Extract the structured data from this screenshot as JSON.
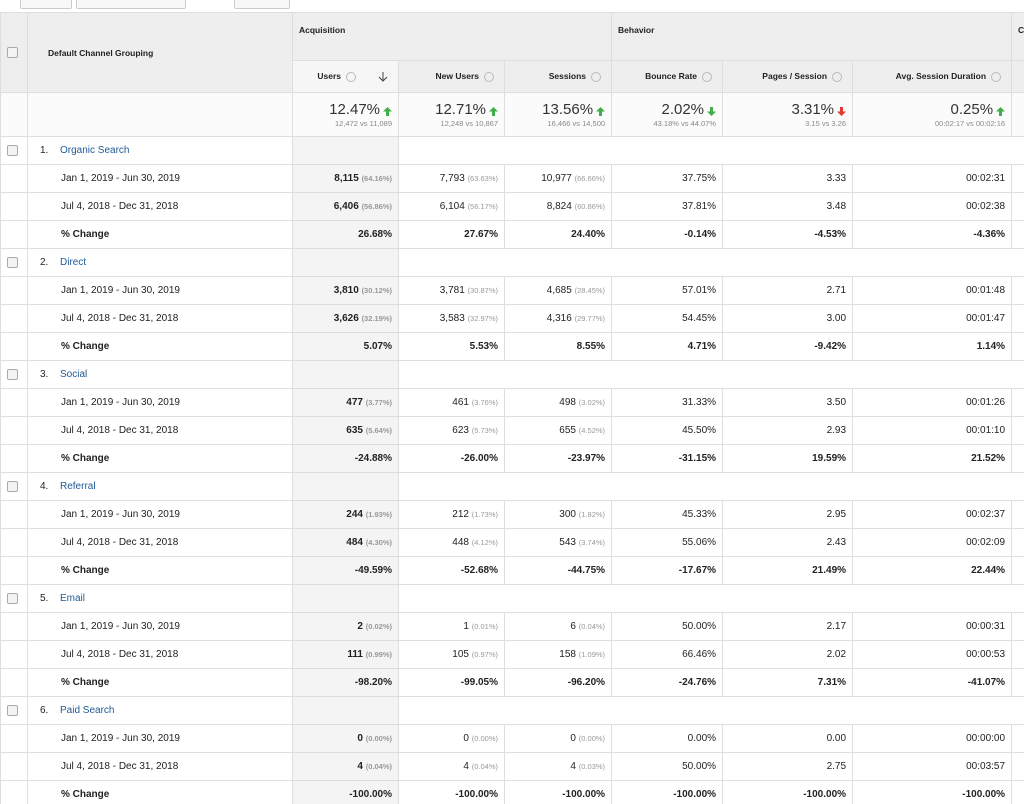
{
  "header": {
    "dimension": "Default Channel Grouping",
    "groups": [
      "Acquisition",
      "Behavior",
      "Co"
    ],
    "columns": [
      "Users",
      "New Users",
      "Sessions",
      "Bounce Rate",
      "Pages / Session",
      "Avg. Session Duration"
    ]
  },
  "summary": [
    {
      "change": "12.47%",
      "direction": "up",
      "arrow_color": "#3fae49",
      "detail": "12,472 vs 11,089"
    },
    {
      "change": "12.71%",
      "direction": "up",
      "arrow_color": "#3fae49",
      "detail": "12,248 vs 10,867"
    },
    {
      "change": "13.56%",
      "direction": "up",
      "arrow_color": "#3fae49",
      "detail": "16,466 vs 14,500"
    },
    {
      "change": "2.02%",
      "direction": "down",
      "arrow_color": "#3fae49",
      "detail": "43.18% vs 44.07%"
    },
    {
      "change": "3.31%",
      "direction": "down",
      "arrow_color": "#e53935",
      "detail": "3.15 vs 3.26"
    },
    {
      "change": "0.25%",
      "direction": "up",
      "arrow_color": "#3fae49",
      "detail": "00:02:17 vs 00:02:16"
    }
  ],
  "rows": [
    {
      "index": "1.",
      "name": "Organic Search",
      "periods": [
        {
          "label": "Jan 1, 2019 - Jun 30, 2019",
          "cells": [
            {
              "value": "8,115",
              "share": "(64.16%)"
            },
            {
              "value": "7,793",
              "share": "(63.63%)"
            },
            {
              "value": "10,977",
              "share": "(66.66%)"
            },
            "37.75%",
            "3.33",
            "00:02:31"
          ]
        },
        {
          "label": "Jul 4, 2018 - Dec 31, 2018",
          "cells": [
            {
              "value": "6,406",
              "share": "(56.86%)"
            },
            {
              "value": "6,104",
              "share": "(56.17%)"
            },
            {
              "value": "8,824",
              "share": "(60.86%)"
            },
            "37.81%",
            "3.48",
            "00:02:38"
          ]
        }
      ],
      "change": {
        "label": "% Change",
        "cells": [
          "26.68%",
          "27.67%",
          "24.40%",
          "-0.14%",
          "-4.53%",
          "-4.36%"
        ]
      }
    },
    {
      "index": "2.",
      "name": "Direct",
      "periods": [
        {
          "label": "Jan 1, 2019 - Jun 30, 2019",
          "cells": [
            {
              "value": "3,810",
              "share": "(30.12%)"
            },
            {
              "value": "3,781",
              "share": "(30.87%)"
            },
            {
              "value": "4,685",
              "share": "(28.45%)"
            },
            "57.01%",
            "2.71",
            "00:01:48"
          ]
        },
        {
          "label": "Jul 4, 2018 - Dec 31, 2018",
          "cells": [
            {
              "value": "3,626",
              "share": "(32.19%)"
            },
            {
              "value": "3,583",
              "share": "(32.97%)"
            },
            {
              "value": "4,316",
              "share": "(29.77%)"
            },
            "54.45%",
            "3.00",
            "00:01:47"
          ]
        }
      ],
      "change": {
        "label": "% Change",
        "cells": [
          "5.07%",
          "5.53%",
          "8.55%",
          "4.71%",
          "-9.42%",
          "1.14%"
        ]
      }
    },
    {
      "index": "3.",
      "name": "Social",
      "periods": [
        {
          "label": "Jan 1, 2019 - Jun 30, 2019",
          "cells": [
            {
              "value": "477",
              "share": "(3.77%)"
            },
            {
              "value": "461",
              "share": "(3.76%)"
            },
            {
              "value": "498",
              "share": "(3.02%)"
            },
            "31.33%",
            "3.50",
            "00:01:26"
          ]
        },
        {
          "label": "Jul 4, 2018 - Dec 31, 2018",
          "cells": [
            {
              "value": "635",
              "share": "(5.64%)"
            },
            {
              "value": "623",
              "share": "(5.73%)"
            },
            {
              "value": "655",
              "share": "(4.52%)"
            },
            "45.50%",
            "2.93",
            "00:01:10"
          ]
        }
      ],
      "change": {
        "label": "% Change",
        "cells": [
          "-24.88%",
          "-26.00%",
          "-23.97%",
          "-31.15%",
          "19.59%",
          "21.52%"
        ]
      }
    },
    {
      "index": "4.",
      "name": "Referral",
      "periods": [
        {
          "label": "Jan 1, 2019 - Jun 30, 2019",
          "cells": [
            {
              "value": "244",
              "share": "(1.93%)"
            },
            {
              "value": "212",
              "share": "(1.73%)"
            },
            {
              "value": "300",
              "share": "(1.82%)"
            },
            "45.33%",
            "2.95",
            "00:02:37"
          ]
        },
        {
          "label": "Jul 4, 2018 - Dec 31, 2018",
          "cells": [
            {
              "value": "484",
              "share": "(4.30%)"
            },
            {
              "value": "448",
              "share": "(4.12%)"
            },
            {
              "value": "543",
              "share": "(3.74%)"
            },
            "55.06%",
            "2.43",
            "00:02:09"
          ]
        }
      ],
      "change": {
        "label": "% Change",
        "cells": [
          "-49.59%",
          "-52.68%",
          "-44.75%",
          "-17.67%",
          "21.49%",
          "22.44%"
        ]
      }
    },
    {
      "index": "5.",
      "name": "Email",
      "periods": [
        {
          "label": "Jan 1, 2019 - Jun 30, 2019",
          "cells": [
            {
              "value": "2",
              "share": "(0.02%)"
            },
            {
              "value": "1",
              "share": "(0.01%)"
            },
            {
              "value": "6",
              "share": "(0.04%)"
            },
            "50.00%",
            "2.17",
            "00:00:31"
          ]
        },
        {
          "label": "Jul 4, 2018 - Dec 31, 2018",
          "cells": [
            {
              "value": "111",
              "share": "(0.99%)"
            },
            {
              "value": "105",
              "share": "(0.97%)"
            },
            {
              "value": "158",
              "share": "(1.09%)"
            },
            "66.46%",
            "2.02",
            "00:00:53"
          ]
        }
      ],
      "change": {
        "label": "% Change",
        "cells": [
          "-98.20%",
          "-99.05%",
          "-96.20%",
          "-24.76%",
          "7.31%",
          "-41.07%"
        ]
      }
    },
    {
      "index": "6.",
      "name": "Paid Search",
      "periods": [
        {
          "label": "Jan 1, 2019 - Jun 30, 2019",
          "cells": [
            {
              "value": "0",
              "share": "(0.00%)"
            },
            {
              "value": "0",
              "share": "(0.00%)"
            },
            {
              "value": "0",
              "share": "(0.00%)"
            },
            "0.00%",
            "0.00",
            "00:00:00"
          ]
        },
        {
          "label": "Jul 4, 2018 - Dec 31, 2018",
          "cells": [
            {
              "value": "4",
              "share": "(0.04%)"
            },
            {
              "value": "4",
              "share": "(0.04%)"
            },
            {
              "value": "4",
              "share": "(0.03%)"
            },
            "50.00%",
            "2.75",
            "00:03:57"
          ]
        }
      ],
      "change": {
        "label": "% Change",
        "cells": [
          "-100.00%",
          "-100.00%",
          "-100.00%",
          "-100.00%",
          "-100.00%",
          "-100.00%"
        ]
      }
    }
  ]
}
